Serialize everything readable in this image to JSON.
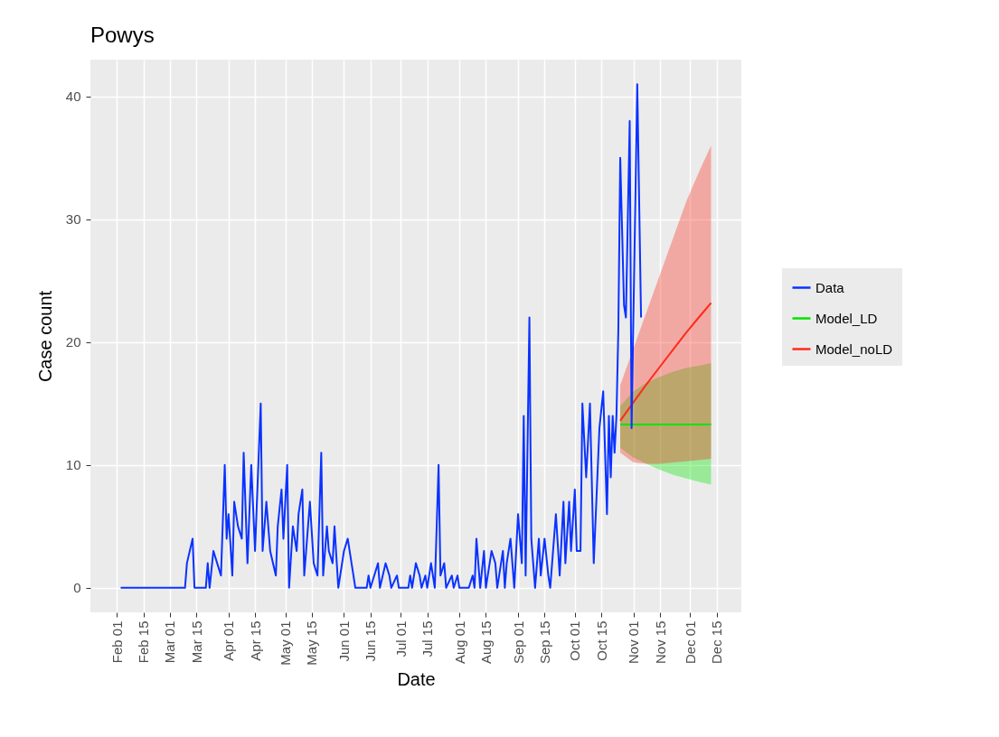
{
  "chart_data": {
    "type": "line",
    "title": "Powys",
    "xlabel": "Date",
    "ylabel": "Case count",
    "grid": true,
    "legend": "right",
    "xlim": [
      "--01-18",
      "--12-28"
    ],
    "ylim": [
      -2,
      43
    ],
    "yticks": [
      0,
      10,
      20,
      30,
      40
    ],
    "xticks": [
      {
        "value": "--02-01",
        "label": "Feb 01"
      },
      {
        "value": "--02-15",
        "label": "Feb 15"
      },
      {
        "value": "--03-01",
        "label": "Mar 01"
      },
      {
        "value": "--03-15",
        "label": "Mar 15"
      },
      {
        "value": "--04-01",
        "label": "Apr 01"
      },
      {
        "value": "--04-15",
        "label": "Apr 15"
      },
      {
        "value": "--05-01",
        "label": "May 01"
      },
      {
        "value": "--05-15",
        "label": "May 15"
      },
      {
        "value": "--06-01",
        "label": "Jun 01"
      },
      {
        "value": "--06-15",
        "label": "Jun 15"
      },
      {
        "value": "--07-01",
        "label": "Jul 01"
      },
      {
        "value": "--07-15",
        "label": "Jul 15"
      },
      {
        "value": "--08-01",
        "label": "Aug 01"
      },
      {
        "value": "--08-15",
        "label": "Aug 15"
      },
      {
        "value": "--09-01",
        "label": "Sep 01"
      },
      {
        "value": "--09-15",
        "label": "Sep 15"
      },
      {
        "value": "--10-01",
        "label": "Oct 01"
      },
      {
        "value": "--10-15",
        "label": "Oct 15"
      },
      {
        "value": "--11-01",
        "label": "Nov 01"
      },
      {
        "value": "--11-15",
        "label": "Nov 15"
      },
      {
        "value": "--12-01",
        "label": "Dec 01"
      },
      {
        "value": "--12-15",
        "label": "Dec 15"
      }
    ],
    "series": [
      {
        "name": "Data",
        "color": "#0a32ff",
        "x": [
          "--02-03",
          "--03-09",
          "--03-10",
          "--03-13",
          "--03-14",
          "--03-20",
          "--03-21",
          "--03-22",
          "--03-24",
          "--03-26",
          "--03-28",
          "--03-30",
          "--03-31",
          "--04-01",
          "--04-03",
          "--04-04",
          "--04-06",
          "--04-08",
          "--04-09",
          "--04-11",
          "--04-13",
          "--04-15",
          "--04-18",
          "--04-19",
          "--04-21",
          "--04-23",
          "--04-26",
          "--04-27",
          "--04-29",
          "--04-30",
          "--05-02",
          "--05-03",
          "--05-05",
          "--05-07",
          "--05-08",
          "--05-10",
          "--05-11",
          "--05-13",
          "--05-14",
          "--05-16",
          "--05-18",
          "--05-20",
          "--05-21",
          "--05-23",
          "--05-24",
          "--05-26",
          "--05-27",
          "--05-29",
          "--06-01",
          "--06-03",
          "--06-05",
          "--06-06",
          "--06-07",
          "--06-13",
          "--06-14",
          "--06-15",
          "--06-17",
          "--06-19",
          "--06-20",
          "--06-23",
          "--06-25",
          "--06-26",
          "--06-29",
          "--06-30",
          "--07-05",
          "--07-06",
          "--07-07",
          "--07-09",
          "--07-11",
          "--07-12",
          "--07-14",
          "--07-15",
          "--07-17",
          "--07-19",
          "--07-21",
          "--07-22",
          "--07-24",
          "--07-25",
          "--07-28",
          "--07-29",
          "--07-31",
          "--08-01",
          "--08-06",
          "--08-08",
          "--08-09",
          "--08-10",
          "--08-12",
          "--08-14",
          "--08-15",
          "--08-16",
          "--08-18",
          "--08-20",
          "--08-21",
          "--08-24",
          "--08-25",
          "--08-26",
          "--08-28",
          "--08-30",
          "--09-01",
          "--09-03",
          "--09-04",
          "--09-05",
          "--09-07",
          "--09-08",
          "--09-10",
          "--09-12",
          "--09-13",
          "--09-15",
          "--09-17",
          "--09-18",
          "--09-21",
          "--09-23",
          "--09-25",
          "--09-26",
          "--09-28",
          "--09-29",
          "--10-01",
          "--10-02",
          "--10-04",
          "--10-05",
          "--10-07",
          "--10-09",
          "--10-11",
          "--10-14",
          "--10-16",
          "--10-18",
          "--10-19",
          "--10-20",
          "--10-21",
          "--10-22",
          "--10-23",
          "--10-24",
          "--10-25",
          "--10-27",
          "--10-28",
          "--10-30",
          "--10-31",
          "--11-03",
          "--11-05"
        ],
        "values": [
          0,
          0,
          2,
          4,
          0,
          0,
          2,
          0,
          3,
          2,
          1,
          10,
          4,
          6,
          1,
          7,
          5,
          4,
          11,
          2,
          10,
          3,
          15,
          3,
          7,
          3,
          1,
          5,
          8,
          4,
          10,
          0,
          5,
          3,
          6,
          8,
          1,
          5,
          7,
          2,
          1,
          11,
          1,
          5,
          3,
          2,
          5,
          0,
          3,
          4,
          2,
          1,
          0,
          0,
          1,
          0,
          1,
          2,
          0,
          2,
          1,
          0,
          1,
          0,
          0,
          1,
          0,
          2,
          1,
          0,
          1,
          0,
          2,
          0,
          10,
          1,
          2,
          0,
          1,
          0,
          1,
          0,
          0,
          1,
          0,
          4,
          0,
          3,
          0,
          1,
          3,
          2,
          0,
          3,
          0,
          2,
          4,
          0,
          6,
          2,
          14,
          1,
          22,
          4,
          0,
          4,
          1,
          4,
          1,
          0,
          6,
          1,
          7,
          2,
          7,
          3,
          8,
          3,
          3,
          15,
          9,
          15,
          2,
          13,
          16,
          6,
          14,
          9,
          14,
          11,
          14,
          21,
          35,
          23,
          22,
          38,
          13,
          41,
          22
        ]
      },
      {
        "name": "Model_LD",
        "color": "#00e400",
        "x": [
          "--10-25",
          "--11-01",
          "--11-08",
          "--11-15",
          "--11-22",
          "--11-29",
          "--12-06",
          "--12-12"
        ],
        "values": [
          13.3,
          13.3,
          13.3,
          13.3,
          13.3,
          13.3,
          13.3,
          13.3
        ],
        "lower": [
          11.4,
          10.6,
          10.1,
          9.6,
          9.2,
          8.9,
          8.6,
          8.4
        ],
        "upper": [
          14.8,
          16.0,
          16.7,
          17.2,
          17.6,
          17.9,
          18.1,
          18.3
        ]
      },
      {
        "name": "Model_noLD",
        "color": "#ff2a1a",
        "x": [
          "--10-25",
          "--11-01",
          "--11-08",
          "--11-15",
          "--11-22",
          "--11-29",
          "--12-06",
          "--12-12"
        ],
        "values": [
          13.6,
          15.1,
          16.6,
          18.0,
          19.4,
          20.8,
          22.1,
          23.2
        ],
        "lower": [
          11.0,
          10.2,
          10.1,
          10.1,
          10.2,
          10.3,
          10.4,
          10.5
        ],
        "upper": [
          16.5,
          19.5,
          22.5,
          25.5,
          28.5,
          31.5,
          34.0,
          36.0
        ]
      }
    ]
  }
}
